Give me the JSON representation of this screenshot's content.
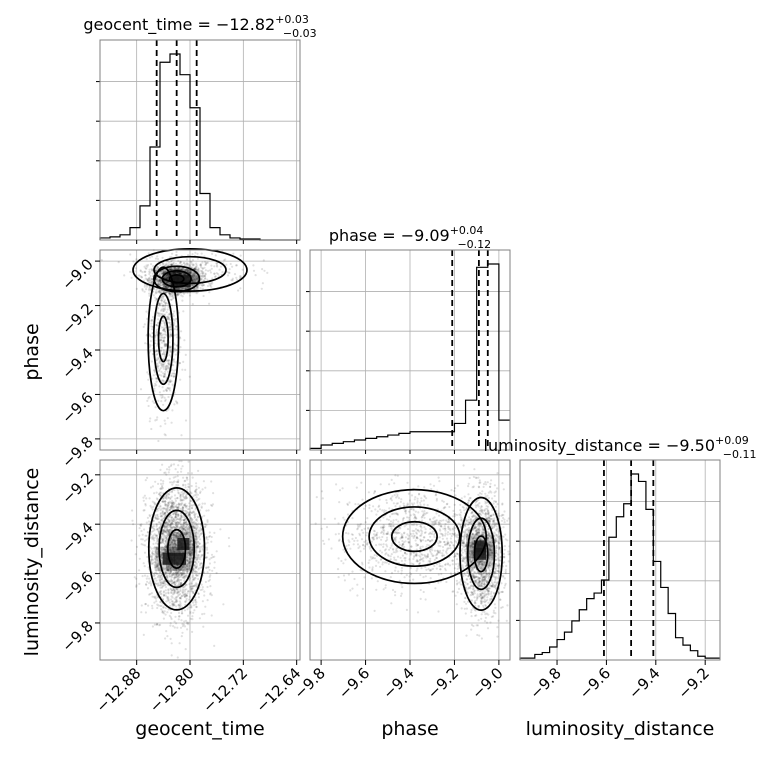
{
  "chart_data": {
    "type": "corner",
    "parameters": [
      "geocent_time",
      "phase",
      "luminosity_distance"
    ],
    "axis_labels": [
      "geocent_time",
      "phase",
      "luminosity_distance"
    ],
    "titles": [
      {
        "param": "geocent_time",
        "lhs": "geocent_time = −12.82",
        "sup": "+0.03",
        "sub": "−0.03"
      },
      {
        "param": "phase",
        "lhs": "phase = −9.09",
        "sup": "+0.04",
        "sub": "−0.12"
      },
      {
        "param": "luminosity_distance",
        "lhs": "luminosity_distance = −9.50",
        "sup": "+0.09",
        "sub": "−0.11"
      }
    ],
    "ranges": {
      "geocent_time": [
        -12.935,
        -12.635
      ],
      "phase": [
        -9.85,
        -8.95
      ],
      "luminosity_distance": [
        -9.95,
        -9.14
      ]
    },
    "ticks": {
      "geocent_time": [
        -12.88,
        -12.8,
        -12.72,
        -12.64
      ],
      "geocent_time_labels": [
        "−12.88",
        "−12.80",
        "−12.72",
        "−12.64"
      ],
      "phase": [
        -9.8,
        -9.6,
        -9.4,
        -9.2,
        -9.0
      ],
      "phase_labels": [
        "−9.8",
        "−9.6",
        "−9.4",
        "−9.2",
        "−9.0"
      ],
      "luminosity_distance": [
        -9.8,
        -9.6,
        -9.4,
        -9.2
      ],
      "luminosity_distance_labels": [
        "−9.8",
        "−9.6",
        "−9.4",
        "−9.2"
      ]
    },
    "quantiles": {
      "geocent_time": [
        -12.85,
        -12.82,
        -12.79
      ],
      "phase": [
        -9.21,
        -9.09,
        -9.05
      ],
      "luminosity_distance": [
        -9.61,
        -9.5,
        -9.41
      ]
    },
    "histograms": {
      "geocent_time": {
        "edges": [
          -12.935,
          -12.92,
          -12.905,
          -12.89,
          -12.875,
          -12.86,
          -12.845,
          -12.83,
          -12.815,
          -12.8,
          -12.785,
          -12.77,
          -12.755,
          -12.74,
          -12.725,
          -12.71,
          -12.695,
          -12.68,
          -12.665,
          -12.65,
          -12.635
        ],
        "counts": [
          2,
          3,
          5,
          12,
          33,
          90,
          172,
          180,
          160,
          128,
          45,
          12,
          5,
          2,
          1,
          1,
          0,
          0,
          0,
          0
        ]
      },
      "phase": {
        "edges": [
          -9.85,
          -9.8,
          -9.75,
          -9.7,
          -9.65,
          -9.6,
          -9.55,
          -9.5,
          -9.45,
          -9.4,
          -9.35,
          -9.3,
          -9.25,
          -9.2,
          -9.15,
          -9.1,
          -9.05,
          -9.0,
          -8.95
        ],
        "counts": [
          1,
          3,
          4,
          5,
          6,
          7,
          8,
          9,
          10,
          11,
          11,
          11,
          11,
          16,
          30,
          110,
          112,
          18
        ]
      },
      "luminosity_distance": {
        "edges": [
          -9.95,
          -9.92,
          -9.89,
          -9.86,
          -9.83,
          -9.8,
          -9.77,
          -9.74,
          -9.71,
          -9.68,
          -9.65,
          -9.62,
          -9.59,
          -9.56,
          -9.53,
          -9.5,
          -9.47,
          -9.44,
          -9.41,
          -9.38,
          -9.35,
          -9.32,
          -9.29,
          -9.26,
          -9.23,
          -9.2,
          -9.17,
          -9.14
        ],
        "counts": [
          1,
          1,
          3,
          4,
          7,
          11,
          15,
          21,
          27,
          33,
          36,
          43,
          66,
          77,
          84,
          100,
          96,
          81,
          53,
          39,
          25,
          12,
          8,
          5,
          2,
          1,
          1
        ]
      }
    },
    "pairs": [
      {
        "x": "geocent_time",
        "y": "phase",
        "clusters": [
          {
            "cx": -12.82,
            "cy": -9.08,
            "sx": 0.018,
            "sy": 0.03,
            "w": 0.65
          },
          {
            "cx": -12.84,
            "cy": -9.35,
            "sx": 0.012,
            "sy": 0.17,
            "w": 0.25
          },
          {
            "cx": -12.8,
            "cy": -9.04,
            "sx": 0.045,
            "sy": 0.05,
            "w": 0.1
          }
        ],
        "peaks": [
          {
            "x": -12.82,
            "y": -9.09
          },
          {
            "x": -12.808,
            "y": -9.09
          }
        ]
      },
      {
        "x": "geocent_time",
        "y": "luminosity_distance",
        "clusters": [
          {
            "cx": -12.82,
            "cy": -9.5,
            "sx": 0.022,
            "sy": 0.13,
            "w": 1.0
          }
        ],
        "peaks": [
          {
            "x": -12.832,
            "y": -9.54
          },
          {
            "x": -12.815,
            "y": -9.54
          },
          {
            "x": -12.81,
            "y": -9.48
          }
        ]
      },
      {
        "x": "phase",
        "y": "luminosity_distance",
        "clusters": [
          {
            "cx": -9.08,
            "cy": -9.52,
            "sx": 0.05,
            "sy": 0.12,
            "w": 0.6
          },
          {
            "cx": -9.38,
            "cy": -9.45,
            "sx": 0.17,
            "sy": 0.1,
            "w": 0.4
          }
        ],
        "peaks": [
          {
            "x": -9.085,
            "y": -9.52
          },
          {
            "x": -9.085,
            "y": -9.49
          }
        ]
      }
    ],
    "colors": {
      "hist": "#000000",
      "grid": "#b0b0b0",
      "scatter": "#000000",
      "contour": "#000000",
      "quantile": "#000000"
    }
  }
}
